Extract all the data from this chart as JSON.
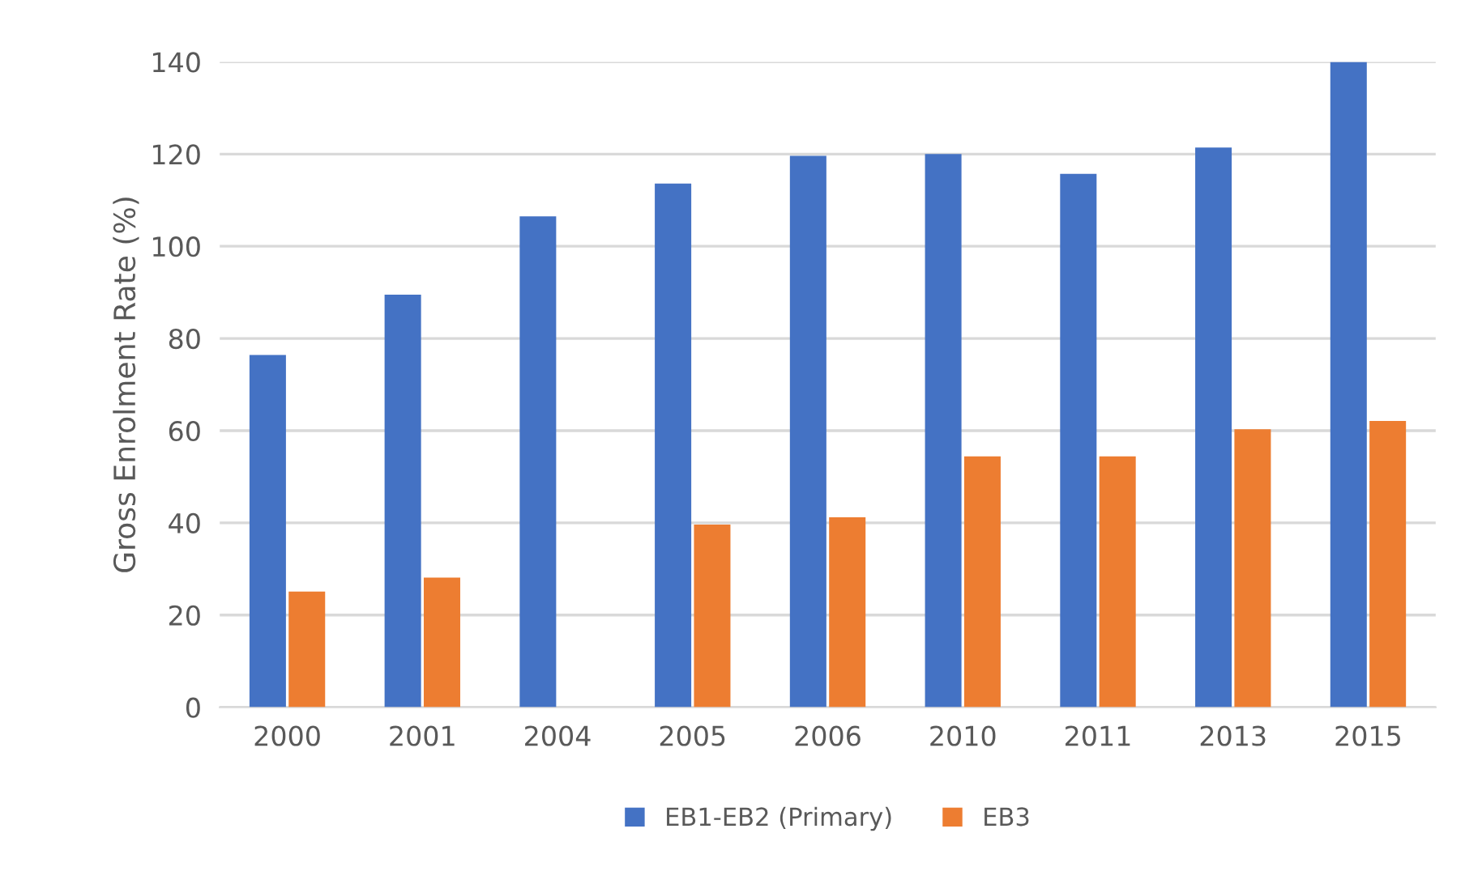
{
  "chart_data": {
    "type": "bar",
    "ylabel": "Gross Enrolment Rate (%)",
    "categories": [
      "2000",
      "2001",
      "2004",
      "2005",
      "2006",
      "2010",
      "2011",
      "2013",
      "2015"
    ],
    "series": [
      {
        "name": "EB1-EB2 (Primary)",
        "color": "#4472c4",
        "values": [
          76.4,
          89.5,
          106.5,
          113.6,
          119.6,
          120.0,
          115.7,
          121.4,
          140.0
        ]
      },
      {
        "name": "EB3",
        "color": "#ed7d31",
        "values": [
          25.1,
          28.1,
          null,
          39.6,
          41.2,
          54.4,
          54.4,
          60.3,
          62.1
        ]
      }
    ],
    "ylim": [
      0,
      140
    ],
    "yticks": [
      0,
      20,
      40,
      60,
      80,
      100,
      120,
      140
    ],
    "grid": "y",
    "legend": "bottom"
  }
}
